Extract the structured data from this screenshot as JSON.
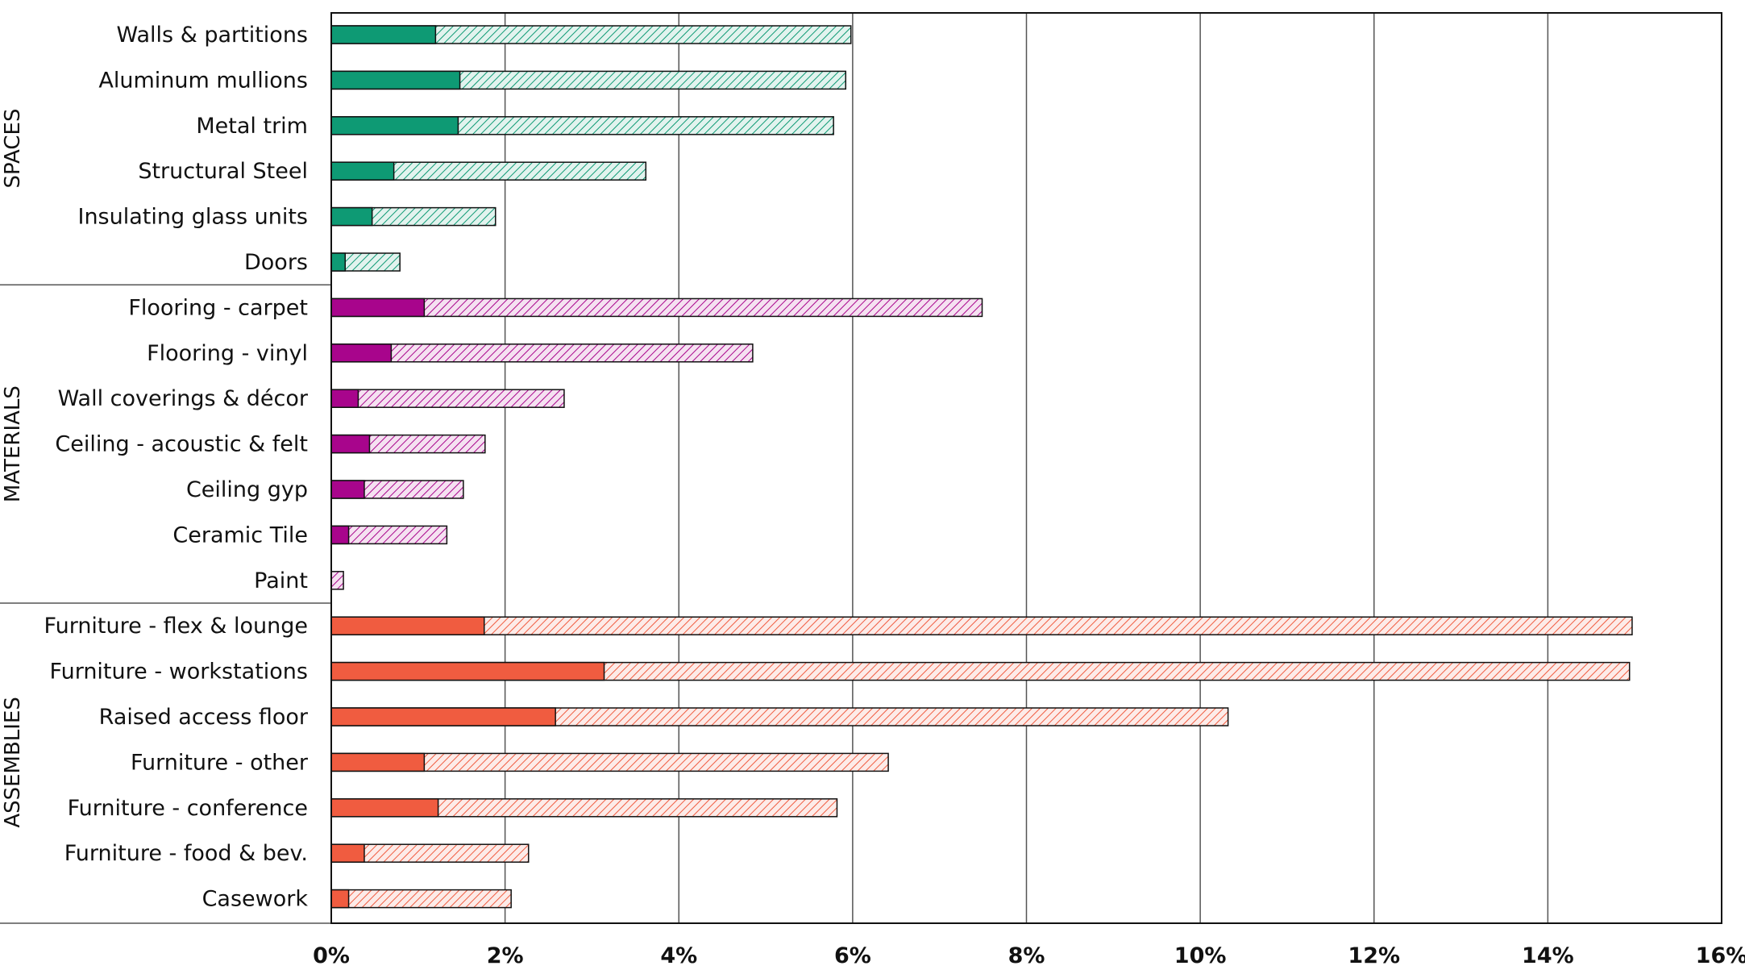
{
  "chart_data": {
    "type": "bar",
    "orientation": "horizontal",
    "stacked": true,
    "x_range": [
      0,
      16
    ],
    "x_ticks": [
      "0%",
      "2%",
      "4%",
      "6%",
      "8%",
      "10%",
      "12%",
      "14%",
      "16%"
    ],
    "grid": "vertical",
    "groups": [
      {
        "label": "SPACES",
        "color": "#0e9a74",
        "items": [
          {
            "label": "Walls & partitions",
            "solid": 1.2,
            "total": 5.98
          },
          {
            "label": "Aluminum mullions",
            "solid": 1.48,
            "total": 5.92
          },
          {
            "label": "Metal trim",
            "solid": 1.46,
            "total": 5.78
          },
          {
            "label": "Structural Steel",
            "solid": 0.72,
            "total": 3.62
          },
          {
            "label": "Insulating glass units",
            "solid": 0.47,
            "total": 1.89
          },
          {
            "label": "Doors",
            "solid": 0.16,
            "total": 0.79
          }
        ]
      },
      {
        "label": "MATERIALS",
        "color": "#a8058c",
        "items": [
          {
            "label": "Flooring - carpet",
            "solid": 1.07,
            "total": 7.49
          },
          {
            "label": "Flooring - vinyl",
            "solid": 0.69,
            "total": 4.85
          },
          {
            "label": "Wall coverings & décor",
            "solid": 0.31,
            "total": 2.68
          },
          {
            "label": "Ceiling - acoustic & felt",
            "solid": 0.44,
            "total": 1.77
          },
          {
            "label": "Ceiling gyp",
            "solid": 0.38,
            "total": 1.52
          },
          {
            "label": "Ceramic Tile",
            "solid": 0.2,
            "total": 1.33
          },
          {
            "label": "Paint",
            "solid": 0.0,
            "total": 0.14
          }
        ]
      },
      {
        "label": "ASSEMBLIES",
        "color": "#f05c40",
        "items": [
          {
            "label": "Furniture - flex & lounge",
            "solid": 1.76,
            "total": 14.97
          },
          {
            "label": "Furniture - workstations",
            "solid": 3.14,
            "total": 14.94
          },
          {
            "label": "Raised access floor",
            "solid": 2.58,
            "total": 10.32
          },
          {
            "label": "Furniture - other",
            "solid": 1.07,
            "total": 6.41
          },
          {
            "label": "Furniture - conference",
            "solid": 1.23,
            "total": 5.82
          },
          {
            "label": "Furniture - food & bev.",
            "solid": 0.38,
            "total": 2.27
          },
          {
            "label": "Casework",
            "solid": 0.2,
            "total": 2.07
          }
        ]
      }
    ]
  }
}
